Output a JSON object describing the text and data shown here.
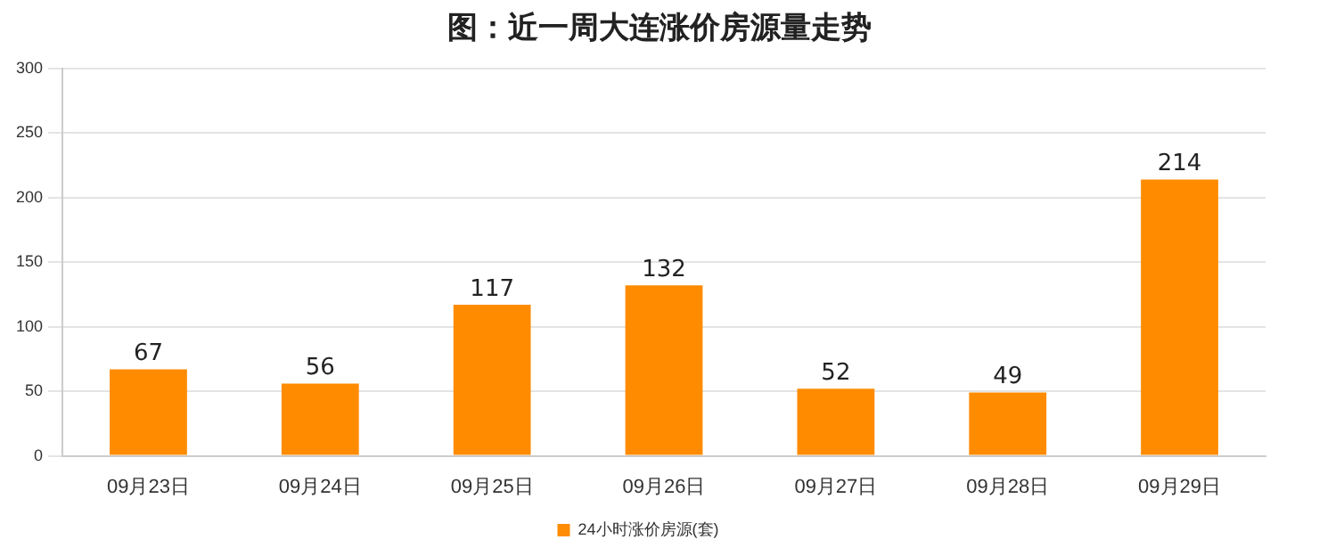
{
  "chart_data": {
    "type": "bar",
    "title": "图：近一周大连涨价房源量走势",
    "categories": [
      "09月23日",
      "09月24日",
      "09月25日",
      "09月26日",
      "09月27日",
      "09月28日",
      "09月29日"
    ],
    "series": [
      {
        "name": "24小时涨价房源(套)",
        "color": "#ff8c00",
        "values": [
          67,
          56,
          117,
          132,
          52,
          49,
          214
        ]
      }
    ],
    "ylim": [
      0,
      300
    ],
    "yticks": [
      0,
      50,
      100,
      150,
      200,
      250,
      300
    ],
    "grid": "y",
    "legend": "bottom",
    "data_labels": true
  }
}
